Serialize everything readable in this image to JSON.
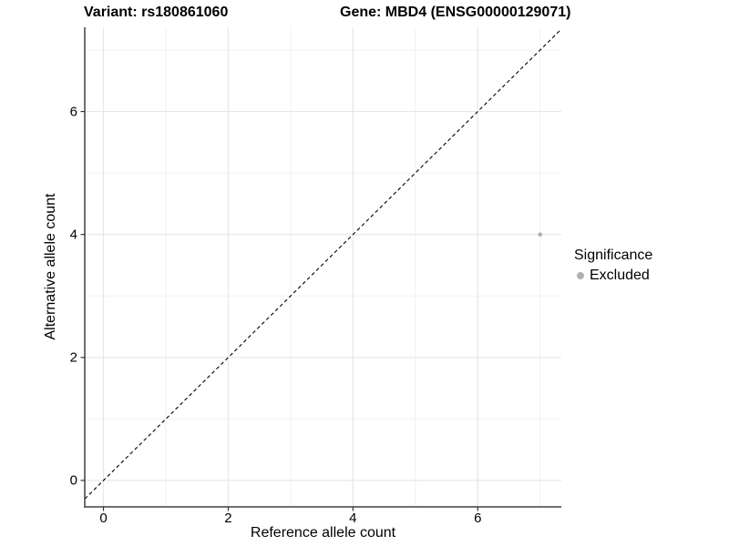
{
  "titles": {
    "variant": "Variant: rs180861060",
    "gene": "Gene: MBD4 (ENSG00000129071)"
  },
  "axes": {
    "x_label": "Reference allele count",
    "y_label": "Alternative allele count"
  },
  "legend": {
    "title": "Significance",
    "items": [
      {
        "label": "Excluded",
        "color": "#b0b0b0"
      }
    ]
  },
  "colors": {
    "background": "#ffffff",
    "grid_major": "#e6e6e6",
    "grid_minor": "#f2f2f2",
    "axis_line": "#404040",
    "tick_mark": "#333333",
    "identity_line": "#000000",
    "point": "#b0b0b0"
  },
  "chart_data": {
    "type": "scatter",
    "title": "Variant: rs180861060 / Gene: MBD4 (ENSG00000129071)",
    "xlabel": "Reference allele count",
    "ylabel": "Alternative allele count",
    "xlim": [
      -0.3,
      7.34
    ],
    "ylim": [
      -0.43,
      7.37
    ],
    "x_ticks": [
      0,
      2,
      4,
      6
    ],
    "y_ticks": [
      0,
      2,
      4,
      6
    ],
    "x_minor_ticks": [
      1,
      3,
      5,
      7
    ],
    "y_minor_ticks": [
      1,
      3,
      5,
      7
    ],
    "grid": "on",
    "legend_position": "right",
    "identity_line": {
      "slope": 1,
      "intercept": 0,
      "style": "dashed",
      "color": "#000000"
    },
    "series": [
      {
        "name": "Excluded",
        "color": "#b0b0b0",
        "points": [
          {
            "x": 7,
            "y": 4
          }
        ]
      }
    ]
  }
}
